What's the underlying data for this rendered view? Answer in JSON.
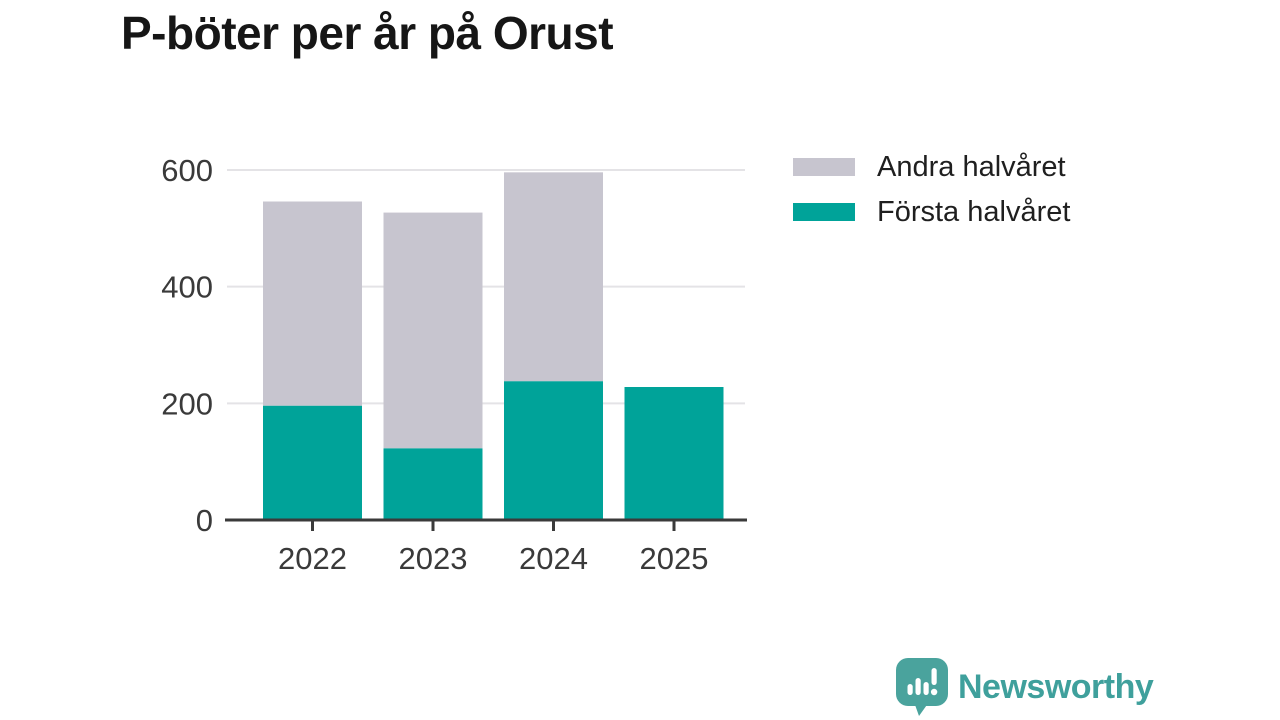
{
  "title": "P-böter per år på Orust",
  "legend": {
    "items": [
      {
        "label": "Andra halvåret",
        "color": "#c7c5cf"
      },
      {
        "label": "Första halvåret",
        "color": "#00a399"
      }
    ]
  },
  "chart_data": {
    "type": "bar",
    "stacked": true,
    "title": "P-böter per år på Orust",
    "categories": [
      "2022",
      "2023",
      "2024",
      "2025"
    ],
    "series": [
      {
        "name": "Första halvåret",
        "color": "#00a399",
        "values": [
          196,
          123,
          238,
          228
        ]
      },
      {
        "name": "Andra halvåret",
        "color": "#c7c5cf",
        "values": [
          350,
          404,
          358,
          0
        ]
      }
    ],
    "totals": [
      546,
      527,
      596,
      228
    ],
    "xlabel": "",
    "ylabel": "",
    "ylim": [
      0,
      600
    ],
    "yticks": [
      0,
      200,
      400,
      600
    ],
    "grid": "horizontal",
    "legend_position": "top-right",
    "colors": {
      "axis": "#3a3a3a",
      "gridline": "#e4e3e6",
      "tick_text": "#3a3a3a"
    }
  },
  "branding": {
    "name": "Newsworthy",
    "icon": "bar-chart-speech-bubble",
    "icon_color": "#4aa39d",
    "text_color": "#3fa09c"
  }
}
